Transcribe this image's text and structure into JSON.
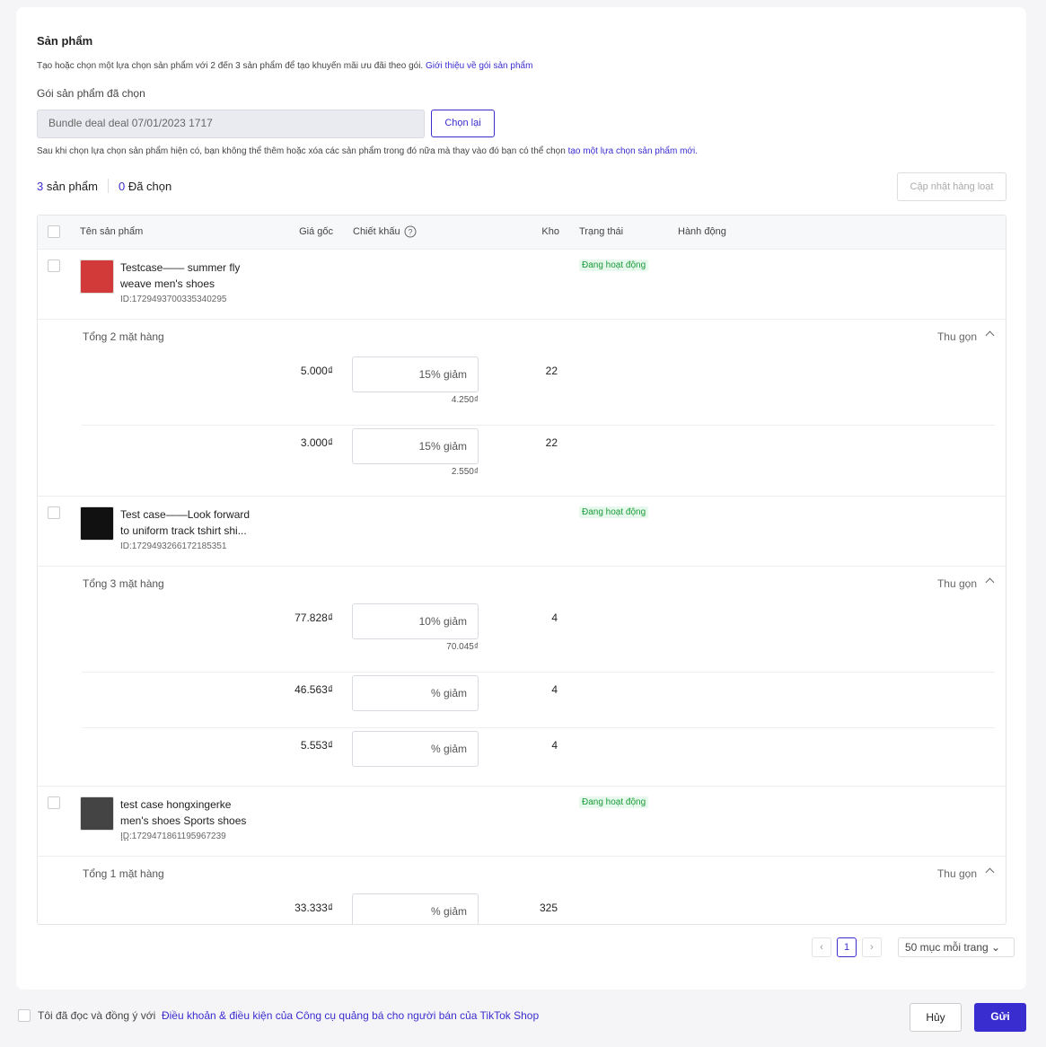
{
  "section": {
    "title": "Sản phẩm",
    "description": "Tạo hoặc chọn một lựa chọn sản phẩm với 2 đến 3 sản phẩm để tạo khuyến mãi ưu đãi theo gói.",
    "description_link": "Giới thiệu về gói sản phẩm",
    "bundle_label": "Gói sản phẩm đã chọn",
    "bundle_value": "Bundle deal deal 07/01/2023 1717",
    "reselect_button": "Chọn lại",
    "note": "Sau khi chọn lựa chọn sản phẩm hiện có, bạn không thể thêm hoặc xóa các sản phẩm trong đó nữa mà thay vào đó bạn có thể chọn",
    "note_link": "tạo một lựa chọn sản phẩm mới.",
    "product_count": 3,
    "product_count_label": "sản phẩm",
    "selected_count": 0,
    "selected_label": "Đã chọn",
    "bulk_update": "Cập nhật hàng loạt"
  },
  "table": {
    "headers": [
      "Tên sản phẩm",
      "Giá gốc",
      "Chiết khấu",
      "Kho",
      "Trạng thái",
      "Hành động"
    ],
    "discount_unit": "% giảm",
    "collapse": "Thu gọn",
    "products": [
      {
        "name": "Testcase—— summer fly weave men's shoes",
        "id": "ID:1729493700335340295",
        "status": "Đang hoạt động",
        "summary": "Tổng 2 mặt hàng",
        "variants": [
          {
            "price": "5.000₫",
            "discount": "15",
            "discounted_price": "4.250₫",
            "stock": 22
          },
          {
            "price": "3.000₫",
            "discount": "15",
            "discounted_price": "2.550₫",
            "stock": 22
          }
        ]
      },
      {
        "name": "Test case——Look forward to uniform track tshirt shi...",
        "id": "ID:1729493266172185351",
        "status": "Đang hoạt động",
        "summary": "Tổng 3 mặt hàng",
        "variants": [
          {
            "price": "77.828₫",
            "discount": "10",
            "discounted_price": "70.045₫",
            "stock": 4
          },
          {
            "price": "46.563₫",
            "stock": 4
          },
          {
            "price": "5.553₫",
            "stock": 4
          }
        ]
      },
      {
        "name": "test case hongxingerke men's shoes Sports shoes ...",
        "id": "ID:1729471861195967239",
        "status": "Đang hoạt động",
        "summary": "Tổng 1 mặt hàng",
        "variants": [
          {
            "price": "33.333₫",
            "stock": 325
          }
        ]
      }
    ]
  },
  "pagination": {
    "page": 1,
    "per_page": "50 mục mỗi trang"
  },
  "footer": {
    "agree": "Tôi đã đọc và đồng ý với",
    "terms_link": "Điều khoản & điều kiện của Công cụ quảng bá cho người bán của TikTok Shop",
    "cancel": "Hủy",
    "submit": "Gửi"
  }
}
